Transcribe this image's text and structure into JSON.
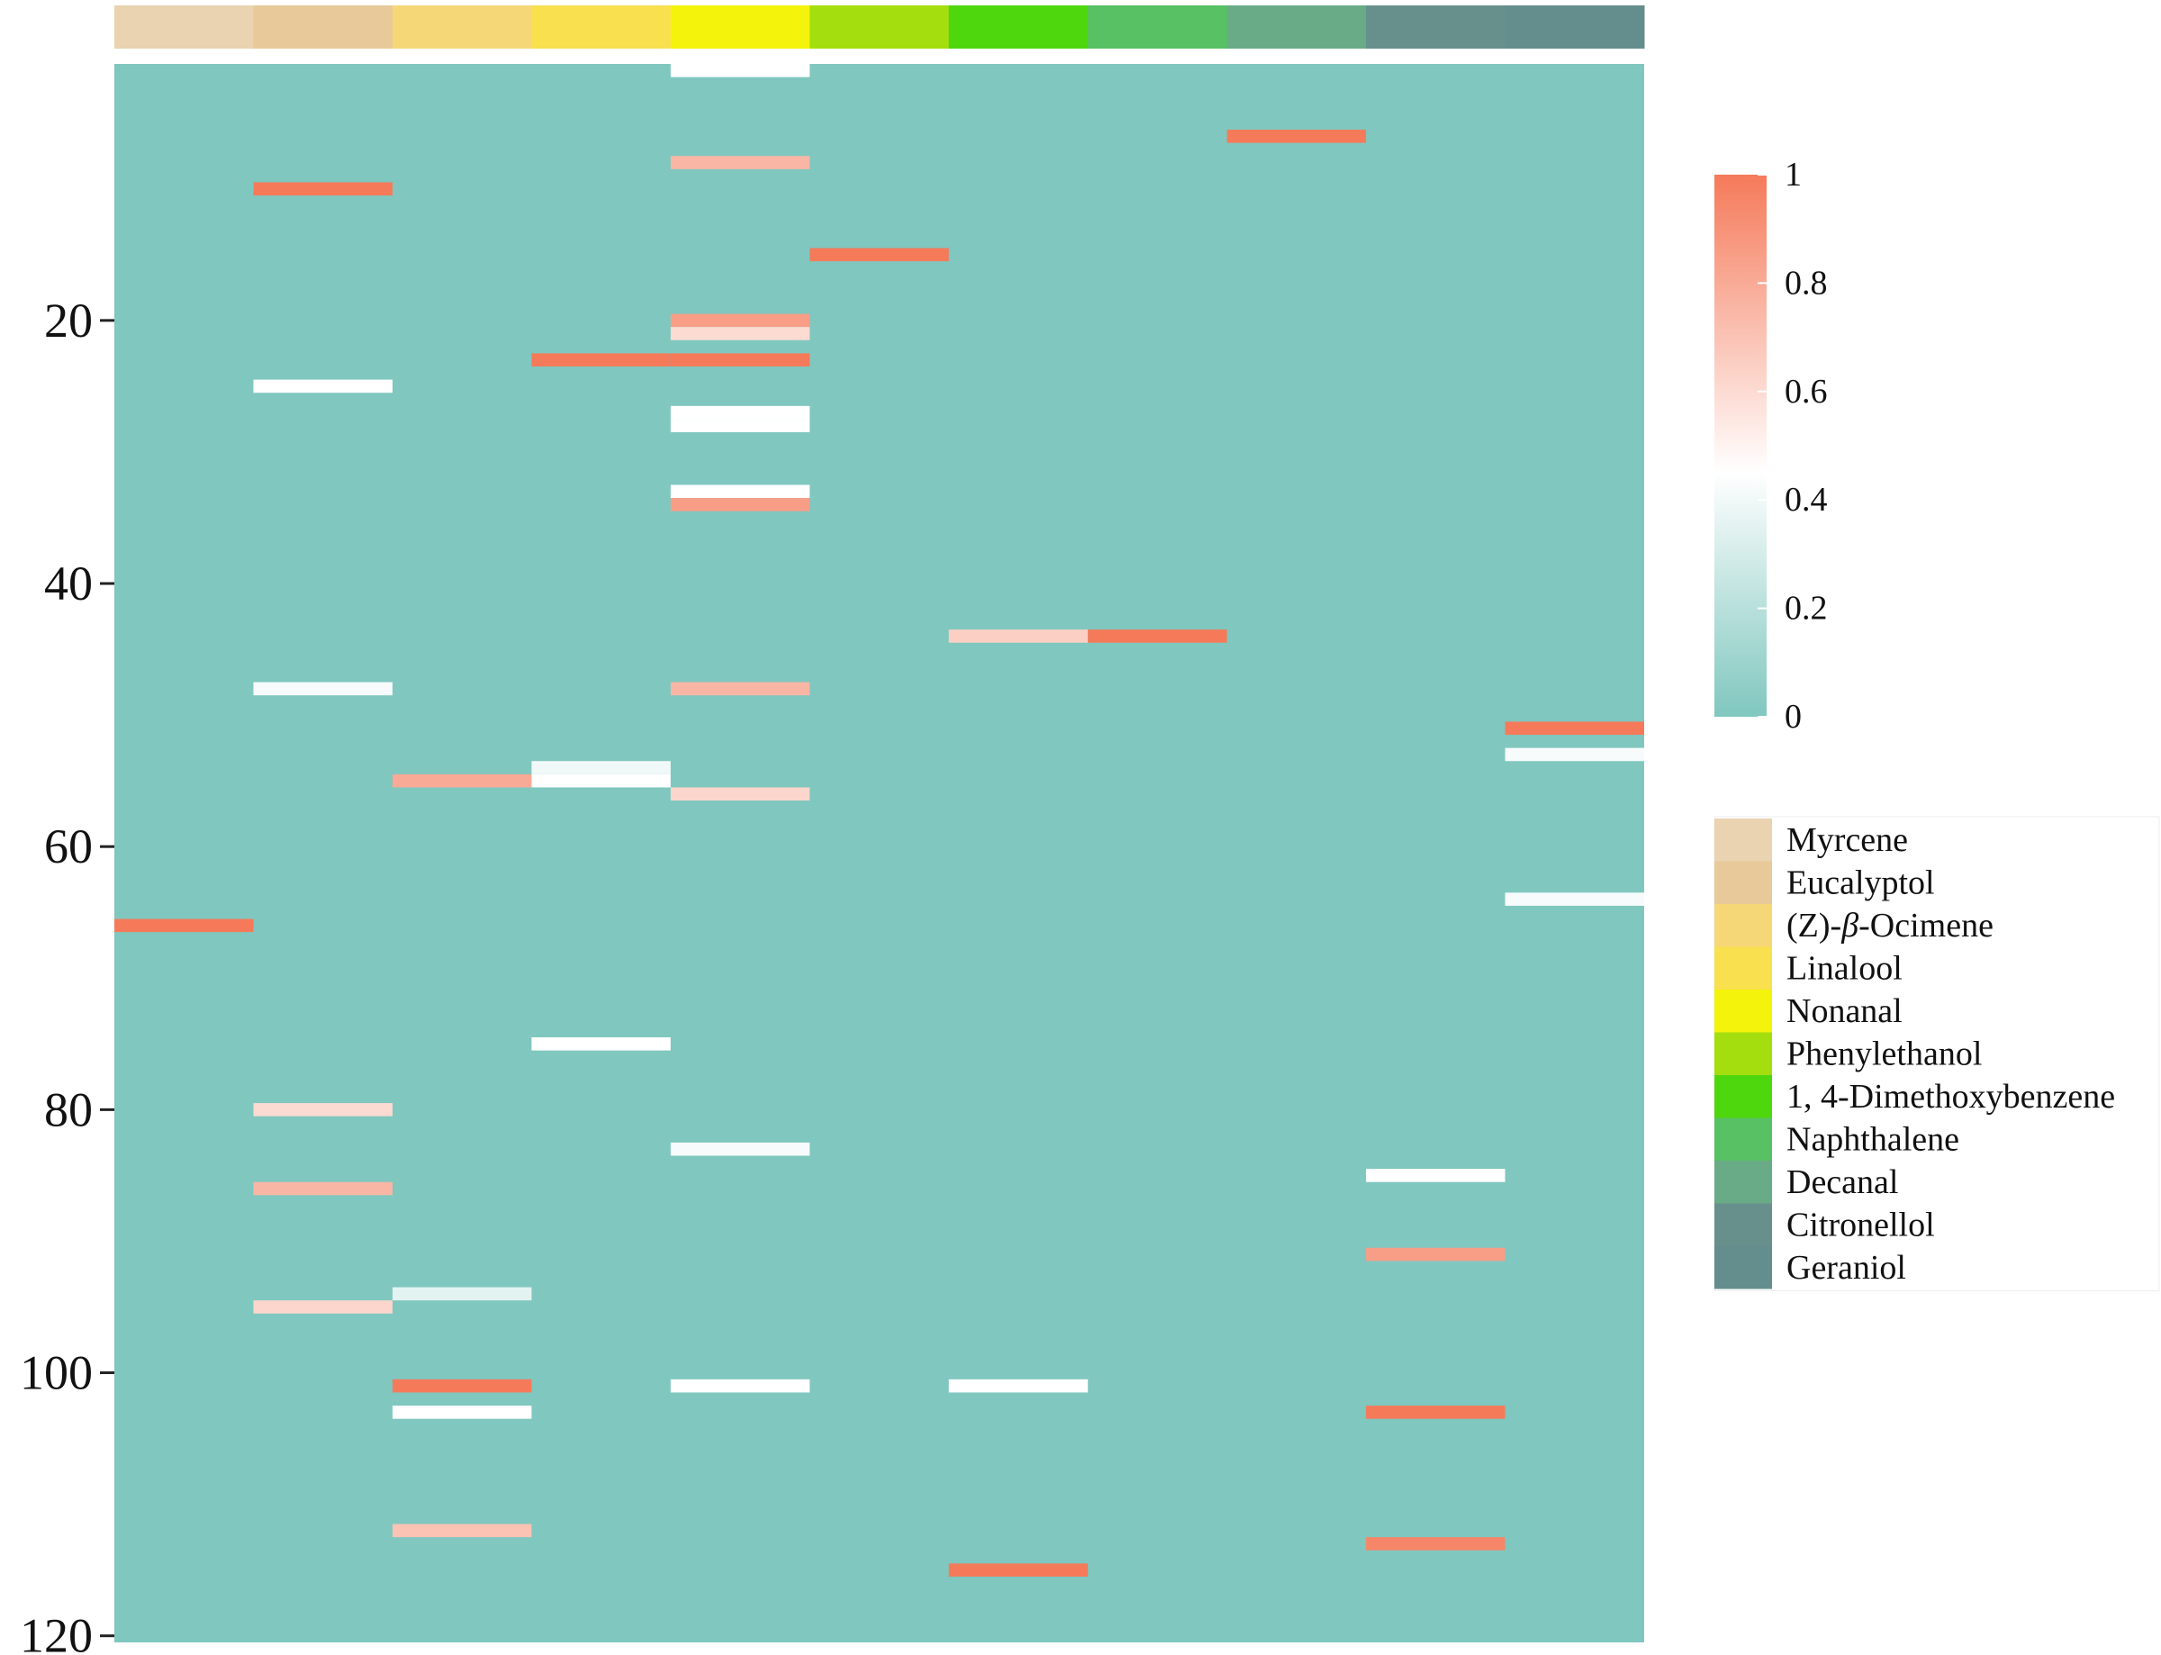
{
  "chart_data": {
    "type": "heatmap",
    "columns": [
      "Myrcene",
      "Eucalyptol",
      "(Z)-β-Ocimene",
      "Linalool",
      "Nonanal",
      "Phenylethanol",
      "1, 4-Dimethoxybenzene",
      "Naphthalene",
      "Decanal",
      "Citronellol",
      "Geraniol"
    ],
    "column_colors": [
      "#e9d3b0",
      "#e8c99a",
      "#f5d778",
      "#f8e04e",
      "#f4f30b",
      "#a5de0e",
      "#4fd70e",
      "#57c163",
      "#6aab87",
      "#67908d",
      "#648e8d"
    ],
    "row_count": 120,
    "y_ticks": [
      20,
      40,
      60,
      80,
      100,
      120
    ],
    "colorscale": {
      "min": 0,
      "max": 1,
      "low": "#80c7bf",
      "mid": "#ffffff",
      "high": "#f57a5a"
    },
    "colorbar_ticks": [
      "1",
      "0.8",
      "0.6",
      "0.4",
      "0.2",
      "0"
    ],
    "legend_position": "right",
    "high_cells": [
      {
        "column": "Myrcene",
        "row": 66,
        "value": 1.0
      },
      {
        "column": "Eucalyptol",
        "row": 10,
        "value": 1.0
      },
      {
        "column": "Eucalyptol",
        "row": 25,
        "value": 0.45
      },
      {
        "column": "Eucalyptol",
        "row": 48,
        "value": 0.42
      },
      {
        "column": "Eucalyptol",
        "row": 80,
        "value": 0.6
      },
      {
        "column": "Eucalyptol",
        "row": 86,
        "value": 0.75
      },
      {
        "column": "Eucalyptol",
        "row": 95,
        "value": 0.62
      },
      {
        "column": "(Z)-β-Ocimene",
        "row": 55,
        "value": 0.8
      },
      {
        "column": "(Z)-β-Ocimene",
        "row": 94,
        "value": 0.35
      },
      {
        "column": "(Z)-β-Ocimene",
        "row": 101,
        "value": 1.0
      },
      {
        "column": "(Z)-β-Ocimene",
        "row": 103,
        "value": 0.45
      },
      {
        "column": "(Z)-β-Ocimene",
        "row": 112,
        "value": 0.7
      },
      {
        "column": "Linalool",
        "row": 23,
        "value": 1.0
      },
      {
        "column": "Linalool",
        "row": 54,
        "value": 0.4
      },
      {
        "column": "Linalool",
        "row": 55,
        "value": 0.45
      },
      {
        "column": "Linalool",
        "row": 75,
        "value": 0.45
      },
      {
        "column": "Nonanal",
        "row": 1,
        "value": 0.45
      },
      {
        "column": "Nonanal",
        "row": 8,
        "value": 0.75
      },
      {
        "column": "Nonanal",
        "row": 20,
        "value": 0.85
      },
      {
        "column": "Nonanal",
        "row": 21,
        "value": 0.6
      },
      {
        "column": "Nonanal",
        "row": 23,
        "value": 1.0
      },
      {
        "column": "Nonanal",
        "row": 27,
        "value": 0.45
      },
      {
        "column": "Nonanal",
        "row": 28,
        "value": 0.45
      },
      {
        "column": "Nonanal",
        "row": 33,
        "value": 0.45
      },
      {
        "column": "Nonanal",
        "row": 34,
        "value": 0.85
      },
      {
        "column": "Nonanal",
        "row": 48,
        "value": 0.75
      },
      {
        "column": "Nonanal",
        "row": 56,
        "value": 0.62
      },
      {
        "column": "Nonanal",
        "row": 83,
        "value": 0.42
      },
      {
        "column": "Nonanal",
        "row": 101,
        "value": 0.45
      },
      {
        "column": "Phenylethanol",
        "row": 15,
        "value": 1.0
      },
      {
        "column": "1, 4-Dimethoxybenzene",
        "row": 44,
        "value": 0.65
      },
      {
        "column": "1, 4-Dimethoxybenzene",
        "row": 101,
        "value": 0.45
      },
      {
        "column": "1, 4-Dimethoxybenzene",
        "row": 115,
        "value": 1.0
      },
      {
        "column": "Naphthalene",
        "row": 44,
        "value": 1.0
      },
      {
        "column": "Decanal",
        "row": 6,
        "value": 1.0
      },
      {
        "column": "Citronellol",
        "row": 85,
        "value": 0.45
      },
      {
        "column": "Citronellol",
        "row": 91,
        "value": 0.85
      },
      {
        "column": "Citronellol",
        "row": 103,
        "value": 1.0
      },
      {
        "column": "Citronellol",
        "row": 113,
        "value": 0.95
      },
      {
        "column": "Geraniol",
        "row": 51,
        "value": 1.0
      },
      {
        "column": "Geraniol",
        "row": 53,
        "value": 0.42
      },
      {
        "column": "Geraniol",
        "row": 64,
        "value": 0.42
      }
    ]
  }
}
